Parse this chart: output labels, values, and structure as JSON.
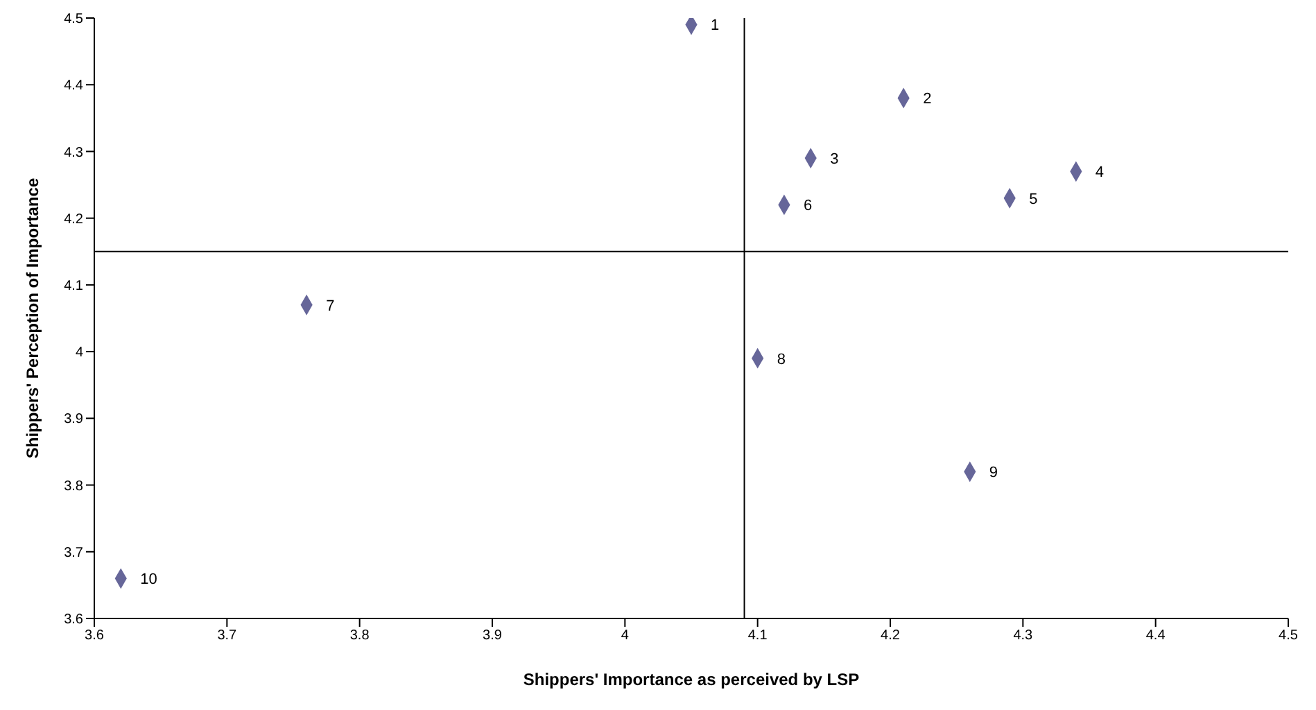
{
  "chart_data": {
    "type": "scatter",
    "xlabel": "Shippers' Importance as perceived by LSP",
    "ylabel": "Shippers' Perception of Importance",
    "x": [
      4.05,
      4.21,
      4.14,
      4.34,
      4.29,
      4.12,
      3.76,
      4.1,
      4.26,
      3.62
    ],
    "series": [
      {
        "color": "#666699",
        "values": [
          4.49,
          4.38,
          4.29,
          4.27,
          4.23,
          4.22,
          4.07,
          3.99,
          3.82,
          3.66
        ]
      }
    ],
    "xlim": [
      3.6,
      4.5
    ],
    "xticks": [
      3.6,
      3.7,
      3.8,
      3.9,
      4,
      4.1,
      4.2,
      4.3,
      4.4,
      4.5
    ],
    "ylim": [
      3.6,
      4.5
    ],
    "yticks": [
      3.6,
      3.7,
      3.8,
      3.9,
      4,
      4.1,
      4.2,
      4.3,
      4.4,
      4.5
    ],
    "marker": "diamond",
    "ref_lines": [
      {
        "axis": "x",
        "value": 4.09,
        "color": "#000000"
      },
      {
        "axis": "y",
        "value": 4.15,
        "color": "#000000"
      }
    ],
    "annotations": [
      {
        "text": "1",
        "x": 4.05,
        "y": 4.49
      },
      {
        "text": "2",
        "x": 4.21,
        "y": 4.38
      },
      {
        "text": "3",
        "x": 4.14,
        "y": 4.29
      },
      {
        "text": "4",
        "x": 4.34,
        "y": 4.27
      },
      {
        "text": "5",
        "x": 4.29,
        "y": 4.23
      },
      {
        "text": "6",
        "x": 4.12,
        "y": 4.22
      },
      {
        "text": "7",
        "x": 3.76,
        "y": 4.07
      },
      {
        "text": "8",
        "x": 4.1,
        "y": 3.99
      },
      {
        "text": "9",
        "x": 4.26,
        "y": 3.82
      },
      {
        "text": "10",
        "x": 3.62,
        "y": 3.66
      }
    ]
  }
}
